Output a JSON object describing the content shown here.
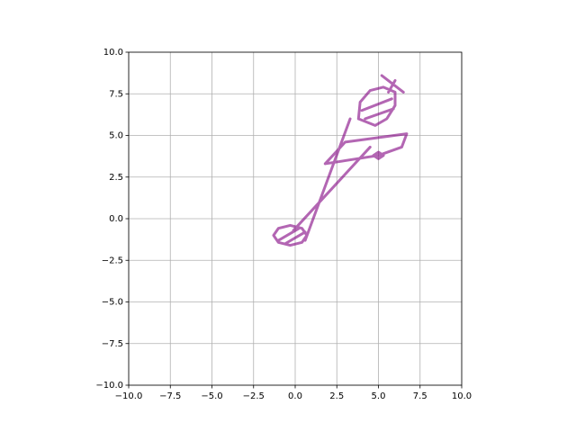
{
  "chart_data": {
    "type": "line",
    "x": [
      0.7,
      0.41,
      -0.3,
      -1.01,
      -1.3,
      -1.01,
      -0.3,
      0.41,
      0.7,
      null,
      -1.0,
      0.2,
      null,
      -0.6,
      0.6,
      null,
      0.6,
      3.3,
      null,
      -0.1,
      4.5,
      null,
      3.8,
      3.9,
      4.5,
      5.3,
      6.0,
      6.0,
      5.5,
      4.8,
      3.8,
      null,
      4.0,
      5.8,
      null,
      4.2,
      5.9,
      null,
      5.2,
      6.5,
      null,
      5.6,
      6.0,
      null,
      1.8,
      3.0,
      6.7,
      6.4,
      5.0,
      1.8,
      null,
      4.7,
      5.0,
      5.3,
      5.0,
      4.7
    ],
    "series": [
      {
        "color": "#800080",
        "values": [
          -1.0,
          -0.58,
          -0.4,
          -0.58,
          -1.0,
          -1.42,
          -1.6,
          -1.42,
          -1.0,
          null,
          -1.3,
          -0.6,
          null,
          -1.5,
          -0.8,
          null,
          -1.3,
          6.0,
          null,
          -0.7,
          4.3,
          null,
          6.0,
          7.0,
          7.7,
          7.9,
          7.6,
          6.8,
          6.0,
          5.6,
          6.0,
          null,
          6.5,
          7.2,
          null,
          6.0,
          6.6,
          null,
          8.6,
          7.6,
          null,
          7.6,
          8.3,
          null,
          3.3,
          4.6,
          5.1,
          4.3,
          3.8,
          3.3,
          null,
          3.8,
          4.0,
          3.8,
          3.6,
          3.8
        ]
      }
    ],
    "xlim": [
      -10,
      10
    ],
    "ylim": [
      -10,
      10
    ],
    "xticks": [
      {
        "value": -10,
        "label": "−10.0"
      },
      {
        "value": -7.5,
        "label": "−7.5"
      },
      {
        "value": -5,
        "label": "−5.0"
      },
      {
        "value": -2.5,
        "label": "−2.5"
      },
      {
        "value": 0,
        "label": "0.0"
      },
      2.5,
      {
        "value": 5,
        "label": "5.0"
      },
      7.5,
      {
        "value": 10,
        "label": "10.0"
      }
    ],
    "yticks": [
      {
        "value": -10,
        "label": "−10.0"
      },
      {
        "value": -7.5,
        "label": "−7.5"
      },
      {
        "value": -5,
        "label": "−5.0"
      },
      {
        "value": -2.5,
        "label": "−2.5"
      },
      {
        "value": 0,
        "label": "0.0"
      },
      2.5,
      {
        "value": 5,
        "label": "5.0"
      },
      7.5,
      {
        "value": 10,
        "label": "10.0"
      }
    ],
    "grid": true
  }
}
